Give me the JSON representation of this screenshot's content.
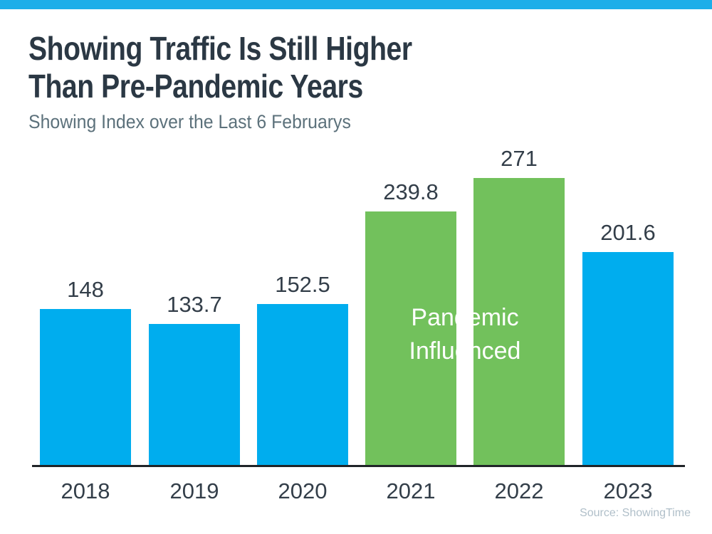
{
  "header": {
    "title_line1": "Showing Traffic Is Still Higher",
    "title_line2": "Than Pre-Pandemic Years",
    "subtitle": "Showing Index over the Last 6 Februarys"
  },
  "chart_data": {
    "type": "bar",
    "title": "Showing Traffic Is Still Higher Than Pre-Pandemic Years",
    "subtitle": "Showing Index over the Last 6 Februarys",
    "categories": [
      "2018",
      "2019",
      "2020",
      "2021",
      "2022",
      "2023"
    ],
    "values": [
      148,
      133.7,
      152.5,
      239.8,
      271,
      201.6
    ],
    "value_labels": [
      "148",
      "133.7",
      "152.5",
      "239.8",
      "271",
      "201.6"
    ],
    "bar_colors": [
      "#00ADEE",
      "#00ADEE",
      "#00ADEE",
      "#72C15C",
      "#72C15C",
      "#00ADEE"
    ],
    "default_color": "#00ADEE",
    "highlight_color": "#72C15C",
    "accent_bar_color": "#1CAEE9",
    "axis_color": "#202428",
    "ylim": [
      0,
      297
    ],
    "grid": false,
    "legend": "none",
    "annotation": {
      "line1": "Pandemic",
      "line2": "Influenced",
      "applies_to": [
        "2021",
        "2022"
      ]
    }
  },
  "footer": {
    "source": "Source: ShowingTime"
  }
}
